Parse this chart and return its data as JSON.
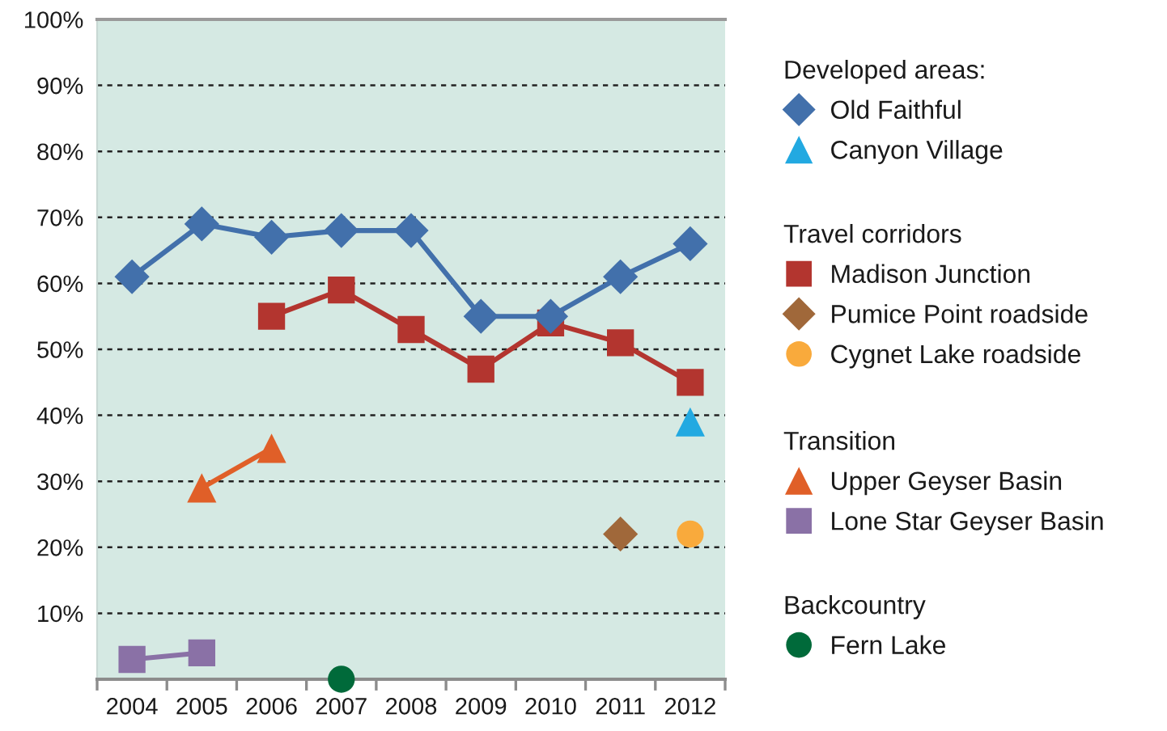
{
  "chart_data": {
    "type": "line",
    "categories": [
      "2004",
      "2005",
      "2006",
      "2007",
      "2008",
      "2009",
      "2010",
      "2011",
      "2012"
    ],
    "ylim": [
      0,
      100
    ],
    "yticks": [
      {
        "value": 10,
        "label": "10%"
      },
      {
        "value": 20,
        "label": "20%"
      },
      {
        "value": 30,
        "label": "30%"
      },
      {
        "value": 40,
        "label": "40%"
      },
      {
        "value": 50,
        "label": "50%"
      },
      {
        "value": 60,
        "label": "60%"
      },
      {
        "value": 70,
        "label": "70%"
      },
      {
        "value": 80,
        "label": "80%"
      },
      {
        "value": 90,
        "label": "90%"
      },
      {
        "value": 100,
        "label": "100%"
      }
    ],
    "grid": "y",
    "legend": "right",
    "annotations": [
      "Developed areas:",
      "Travel corridors",
      "Transition",
      "Backcountry"
    ],
    "series": [
      {
        "name": "Old Faithful",
        "color": "#4270ab",
        "marker": "diamond",
        "values": [
          61,
          69,
          67,
          68,
          68,
          55,
          55,
          61,
          66
        ]
      },
      {
        "name": "Canyon Village",
        "color": "#22a9e1",
        "marker": "triangle",
        "type": "scatter",
        "values": [
          null,
          null,
          null,
          null,
          null,
          null,
          null,
          null,
          39
        ]
      },
      {
        "name": "Madison Junction",
        "color": "#b3352f",
        "marker": "square",
        "values": [
          null,
          null,
          55,
          59,
          53,
          47,
          54,
          51,
          45
        ]
      },
      {
        "name": "Pumice Point roadside",
        "color": "#a0683a",
        "marker": "diamond",
        "type": "scatter",
        "values": [
          null,
          null,
          null,
          null,
          null,
          null,
          null,
          22,
          null
        ]
      },
      {
        "name": "Cygnet Lake roadside",
        "color": "#f9aa3c",
        "marker": "circle",
        "type": "scatter",
        "values": [
          null,
          null,
          null,
          null,
          null,
          null,
          null,
          null,
          22
        ]
      },
      {
        "name": "Upper Geyser Basin",
        "color": "#e05f28",
        "marker": "triangle",
        "values": [
          null,
          29,
          35,
          null,
          null,
          null,
          null,
          null,
          null
        ]
      },
      {
        "name": "Lone Star Geyser Basin",
        "color": "#8a71a6",
        "marker": "square",
        "values": [
          3,
          4,
          null,
          null,
          null,
          null,
          null,
          null,
          null
        ]
      },
      {
        "name": "Fern Lake",
        "color": "#006a3a",
        "marker": "circle",
        "type": "scatter",
        "values": [
          null,
          null,
          null,
          0,
          null,
          null,
          null,
          null,
          null
        ]
      }
    ]
  }
}
